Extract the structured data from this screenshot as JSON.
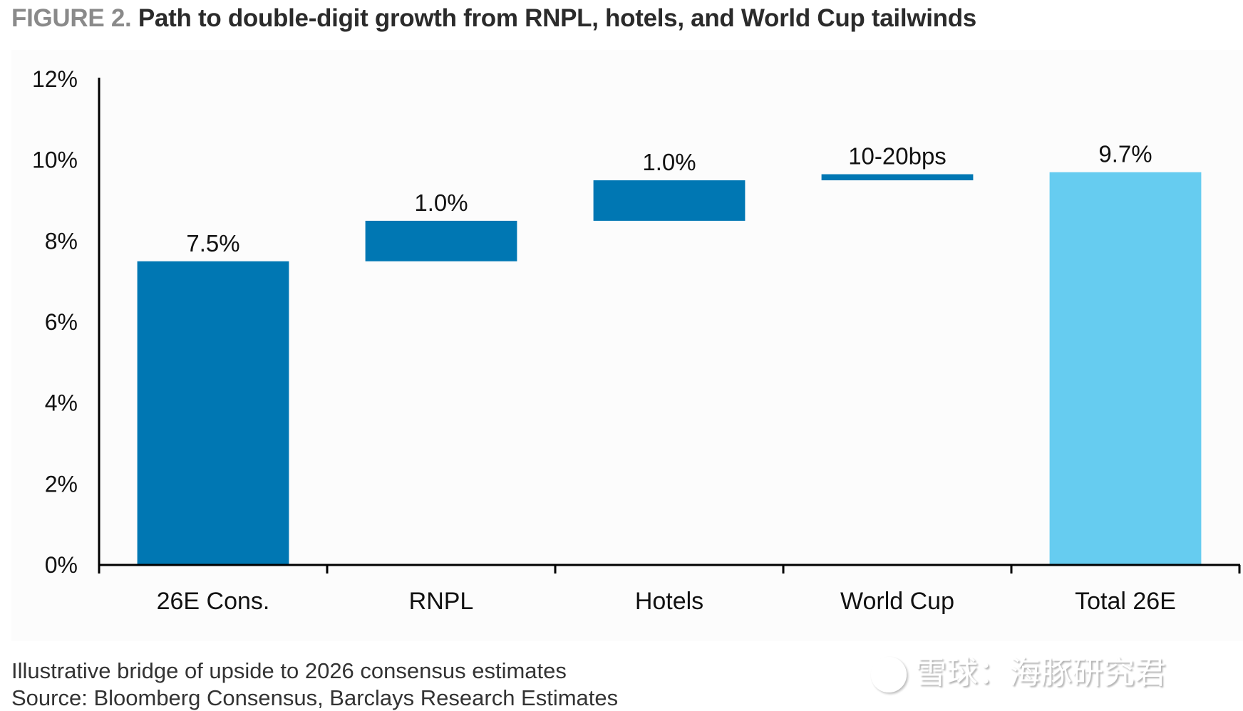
{
  "title": {
    "figure_label": "FIGURE 2.",
    "text": "Path to double-digit growth from RNPL, hotels, and World Cup tailwinds"
  },
  "colors": {
    "increment": "#0077b3",
    "total": "#66ccf0",
    "axis": "#000000"
  },
  "chart_data": {
    "type": "bar",
    "subtype": "waterfall",
    "title": "Path to double-digit growth from RNPL, hotels, and World Cup tailwinds",
    "xlabel": "",
    "ylabel": "",
    "ylim": [
      0,
      12
    ],
    "yticks": [
      0,
      2,
      4,
      6,
      8,
      10,
      12
    ],
    "ytick_labels": [
      "0%",
      "2%",
      "4%",
      "6%",
      "8%",
      "10%",
      "12%"
    ],
    "grid": false,
    "legend": "none",
    "categories": [
      "26E Cons.",
      "RNPL",
      "Hotels",
      "World Cup",
      "Total 26E"
    ],
    "bars": [
      {
        "category": "26E Cons.",
        "base": 0,
        "top": 7.5,
        "label": "7.5%",
        "kind": "increment"
      },
      {
        "category": "RNPL",
        "base": 7.5,
        "top": 8.5,
        "label": "1.0%",
        "kind": "increment"
      },
      {
        "category": "Hotels",
        "base": 8.5,
        "top": 9.5,
        "label": "1.0%",
        "kind": "increment"
      },
      {
        "category": "World Cup",
        "base": 9.5,
        "top": 9.65,
        "label": "10-20bps",
        "kind": "increment"
      },
      {
        "category": "Total 26E",
        "base": 0,
        "top": 9.7,
        "label": "9.7%",
        "kind": "total"
      }
    ]
  },
  "footnotes": {
    "note": "Illustrative bridge of upside to 2026 consensus estimates",
    "source": "Source: Bloomberg Consensus, Barclays Research Estimates"
  },
  "watermark": {
    "text": "雪球：海豚研究君"
  }
}
